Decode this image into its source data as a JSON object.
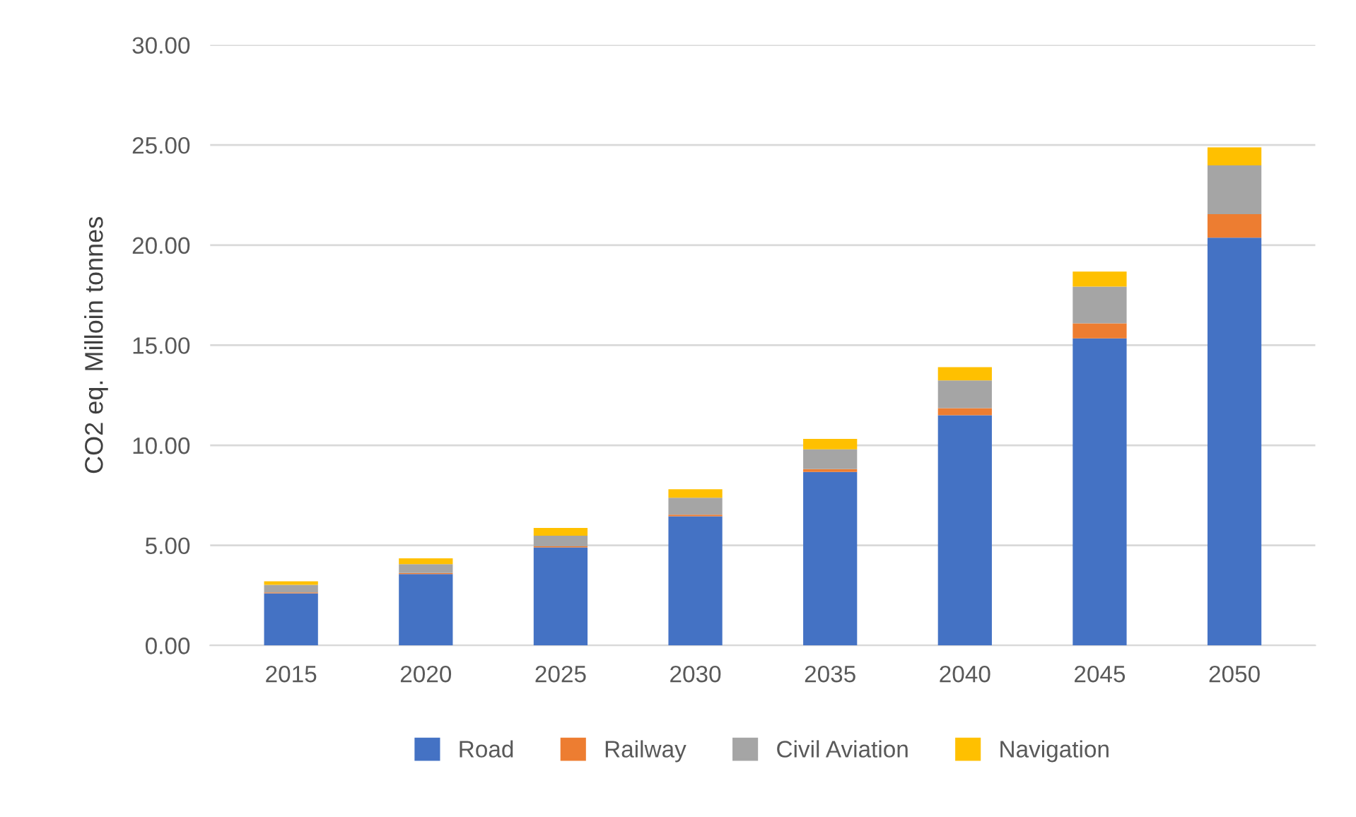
{
  "chart_data": {
    "type": "bar",
    "stacked": true,
    "ylabel": "CO2 eq. Milloin tonnes",
    "categories": [
      "2015",
      "2020",
      "2025",
      "2030",
      "2035",
      "2040",
      "2045",
      "2050"
    ],
    "series": [
      {
        "name": "Road",
        "color": "#4472c4",
        "values": [
          2.6,
          3.57,
          4.9,
          6.45,
          8.67,
          11.5,
          15.34,
          20.37
        ]
      },
      {
        "name": "Railway",
        "color": "#ed7d31",
        "values": [
          0.05,
          0.05,
          0.05,
          0.08,
          0.14,
          0.35,
          0.75,
          1.18
        ]
      },
      {
        "name": "Civil Aviation",
        "color": "#a5a5a5",
        "values": [
          0.38,
          0.44,
          0.53,
          0.85,
          0.99,
          1.39,
          1.84,
          2.43
        ]
      },
      {
        "name": "Navigation",
        "color": "#ffc000",
        "values": [
          0.17,
          0.29,
          0.39,
          0.42,
          0.52,
          0.66,
          0.75,
          0.9
        ]
      }
    ],
    "ylim": [
      0,
      30
    ],
    "yticks": [
      {
        "value": 0,
        "label": "0.00"
      },
      {
        "value": 5,
        "label": "5.00"
      },
      {
        "value": 10,
        "label": "10.00"
      },
      {
        "value": 15,
        "label": "15.00"
      },
      {
        "value": 20,
        "label": "20.00"
      },
      {
        "value": 25,
        "label": "25.00"
      },
      {
        "value": 30,
        "label": "30.00"
      }
    ],
    "grid": "y",
    "legend": "bottom"
  }
}
